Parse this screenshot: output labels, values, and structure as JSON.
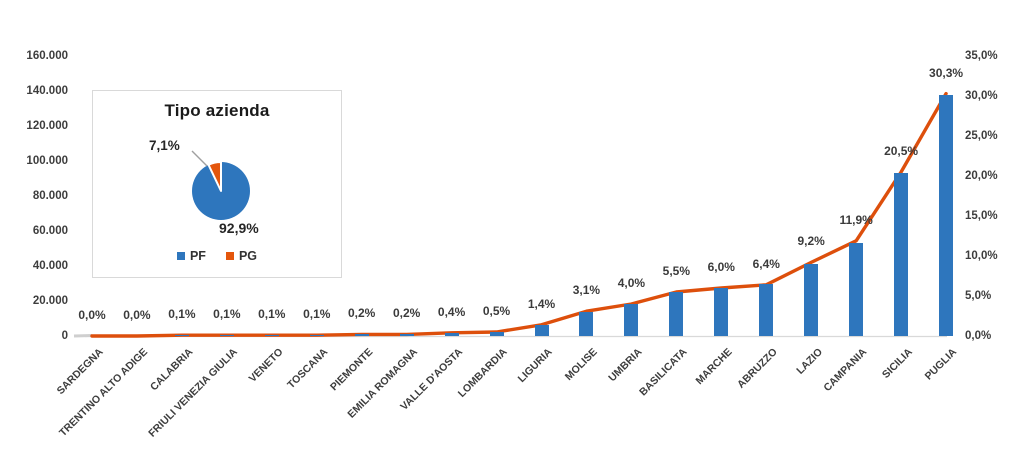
{
  "colors": {
    "bar_blue": "#2E76BD",
    "line_orange": "#DD4F0C",
    "pie_blue": "#2E76BD",
    "pie_orange": "#E4560D",
    "axis_text": "#3D3D3D",
    "baseline_gray": "#D9D9D9",
    "leader_gray": "#A0A0A0"
  },
  "chart_data": {
    "type": "combo-bar-line",
    "title": "",
    "categories": [
      "SARDEGNA",
      "TRENTINO ALTO ADIGE",
      "CALABRIA",
      "FRIULI VENEZIA GIULIA",
      "VENETO",
      "TOSCANA",
      "PIEMONTE",
      "EMILIA ROMAGNA",
      "VALLE D'AOSTA",
      "LOMBARDIA",
      "LIGURIA",
      "MOLISE",
      "UMBRIA",
      "BASILICATA",
      "MARCHE",
      "ABRUZZO",
      "LAZIO",
      "CAMPANIA",
      "SICILIA",
      "PUGLIA"
    ],
    "bars": {
      "axis": "left",
      "values_estimated": [
        0,
        0,
        500,
        500,
        500,
        500,
        1000,
        1000,
        2000,
        2500,
        6500,
        14000,
        18500,
        25000,
        27500,
        29500,
        41000,
        53000,
        93000,
        138000
      ]
    },
    "line": {
      "axis": "right",
      "values_pct": [
        0.0,
        0.0,
        0.1,
        0.1,
        0.1,
        0.1,
        0.2,
        0.2,
        0.4,
        0.5,
        1.4,
        3.1,
        4.0,
        5.5,
        6.0,
        6.4,
        9.2,
        11.9,
        20.5,
        30.3
      ],
      "labels": [
        "0,0%",
        "0,0%",
        "0,1%",
        "0,1%",
        "0,1%",
        "0,1%",
        "0,2%",
        "0,2%",
        "0,4%",
        "0,5%",
        "1,4%",
        "3,1%",
        "4,0%",
        "5,5%",
        "6,0%",
        "6,4%",
        "9,2%",
        "11,9%",
        "20,5%",
        "30,3%"
      ]
    },
    "left_axis": {
      "min": 0,
      "max": 160000,
      "ticks": [
        "0",
        "20.000",
        "40.000",
        "60.000",
        "80.000",
        "100.000",
        "120.000",
        "140.000",
        "160.000"
      ]
    },
    "right_axis": {
      "min": 0,
      "max": 35,
      "ticks": [
        "0,0%",
        "5,0%",
        "10,0%",
        "15,0%",
        "20,0%",
        "25,0%",
        "30,0%",
        "35,0%"
      ]
    },
    "grid": false,
    "legend_position": "inset-pie-only",
    "inset_pie": {
      "title": "Tipo azienda",
      "slices": [
        {
          "label": "PF",
          "pct": 92.9,
          "pct_label": "92,9%",
          "color": "#2E76BD"
        },
        {
          "label": "PG",
          "pct": 7.1,
          "pct_label": "7,1%",
          "color": "#E4560D"
        }
      ]
    }
  }
}
